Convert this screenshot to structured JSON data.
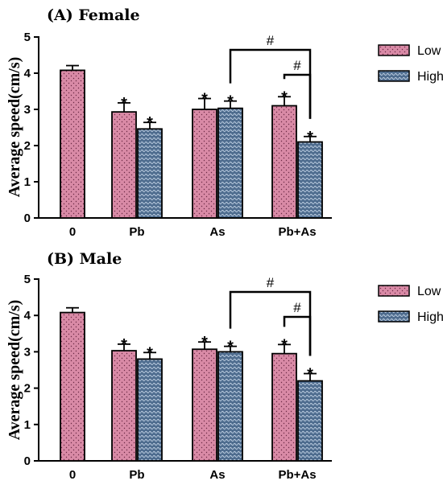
{
  "colors": {
    "low": "#d98aa6",
    "high": "#4f6d8f",
    "line": "#000000"
  },
  "legend": [
    {
      "key": "low",
      "label": "Low"
    },
    {
      "key": "high",
      "label": "High"
    }
  ],
  "chart_data": [
    {
      "type": "bar",
      "panel_title": "(A)  Female",
      "ylabel": "Average speed(cm/s)",
      "xlabel": "",
      "ylim": [
        0,
        5
      ],
      "yticks": [
        "0",
        "1",
        "2",
        "3",
        "4",
        "5"
      ],
      "categories": [
        "0",
        "Pb",
        "As",
        "Pb+As"
      ],
      "series": [
        {
          "name": "Low",
          "key": "low",
          "values": [
            4.08,
            2.93,
            3.0,
            3.1
          ],
          "errors": [
            0.13,
            0.25,
            0.3,
            0.25
          ],
          "marks": [
            "",
            "*",
            "*",
            "*"
          ]
        },
        {
          "name": "High",
          "key": "high",
          "values": [
            null,
            2.46,
            3.03,
            2.1
          ],
          "errors": [
            null,
            0.18,
            0.2,
            0.15
          ],
          "marks": [
            "",
            "*",
            "*",
            "*"
          ]
        }
      ],
      "brackets": [
        {
          "label": "#",
          "from": "As/High",
          "to": "Pb+As/High"
        },
        {
          "label": "#",
          "from": "Pb+As/Low",
          "to": "Pb+As/High"
        }
      ]
    },
    {
      "type": "bar",
      "panel_title": "(B)  Male",
      "ylabel": "Average speed(cm/s)",
      "xlabel": "",
      "ylim": [
        0,
        5
      ],
      "yticks": [
        "0",
        "1",
        "2",
        "3",
        "4",
        "5"
      ],
      "categories": [
        "0",
        "Pb",
        "As",
        "Pb+As"
      ],
      "series": [
        {
          "name": "Low",
          "key": "low",
          "values": [
            4.08,
            3.03,
            3.07,
            2.95
          ],
          "errors": [
            0.13,
            0.18,
            0.2,
            0.25
          ],
          "marks": [
            "",
            "*",
            "*",
            "*"
          ]
        },
        {
          "name": "High",
          "key": "high",
          "values": [
            null,
            2.8,
            3.0,
            2.2
          ],
          "errors": [
            null,
            0.18,
            0.15,
            0.2
          ],
          "marks": [
            "",
            "*",
            "*",
            "*"
          ]
        }
      ],
      "brackets": [
        {
          "label": "#",
          "from": "As/High",
          "to": "Pb+As/High"
        },
        {
          "label": "#",
          "from": "Pb+As/Low",
          "to": "Pb+As/High"
        }
      ]
    }
  ]
}
